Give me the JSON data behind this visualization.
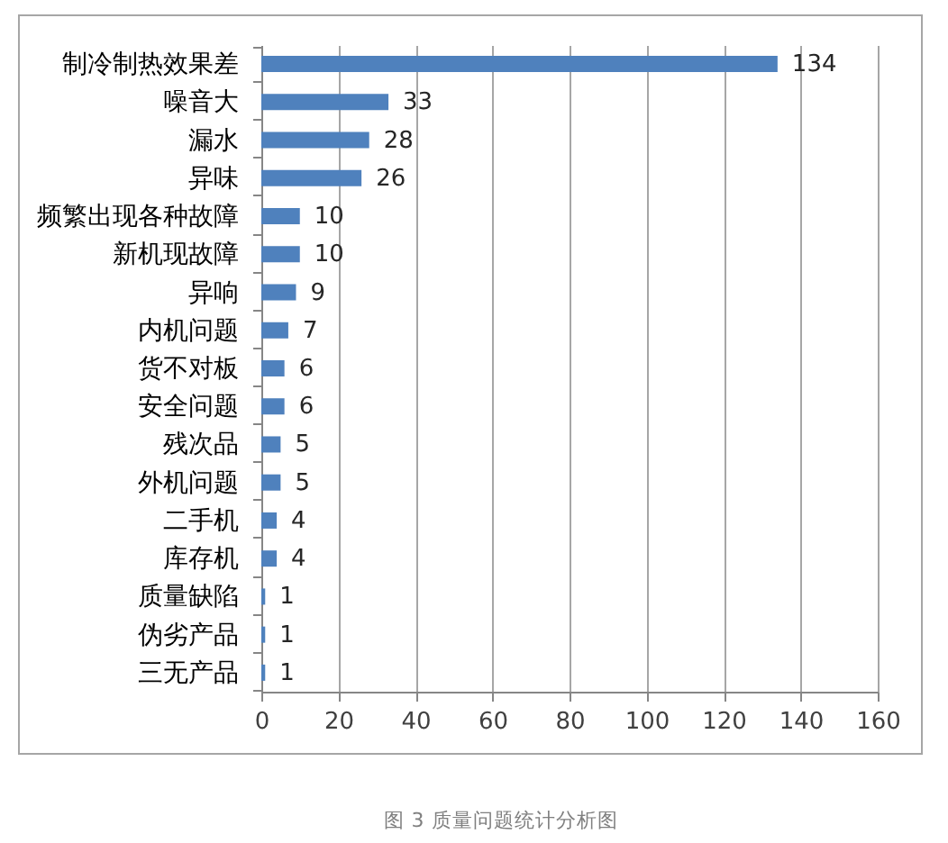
{
  "chart_data": {
    "type": "bar",
    "orientation": "horizontal",
    "categories": [
      "制冷制热效果差",
      "噪音大",
      "漏水",
      "异味",
      "频繁出现各种故障",
      "新机现故障",
      "异响",
      "内机问题",
      "货不对板",
      "安全问题",
      "残次品",
      "外机问题",
      "二手机",
      "库存机",
      "质量缺陷",
      "伪劣产品",
      "三无产品"
    ],
    "values": [
      134,
      33,
      28,
      26,
      10,
      10,
      9,
      7,
      6,
      6,
      5,
      5,
      4,
      4,
      1,
      1,
      1
    ],
    "color": "#4f81bd",
    "xlim": [
      0,
      160
    ],
    "xticks": [
      0,
      20,
      40,
      60,
      80,
      100,
      120,
      140,
      160
    ],
    "grid": "x",
    "data_labels": true,
    "annotations": [
      "图 3 质量问题统计分析图"
    ]
  }
}
